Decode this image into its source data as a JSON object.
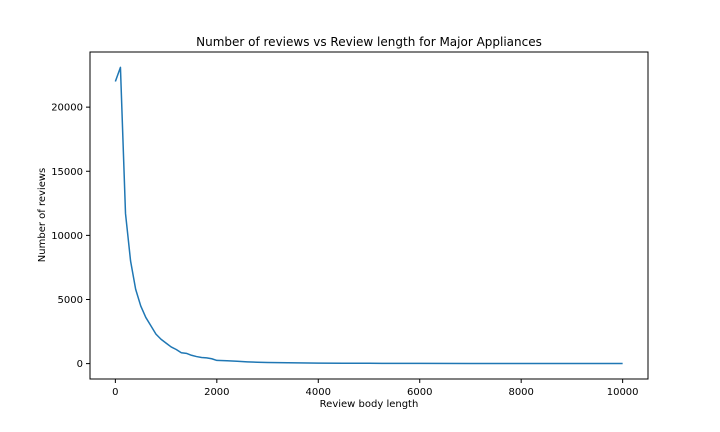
{
  "chart_data": {
    "type": "line",
    "title": "Number of reviews vs Review length for Major Appliances",
    "xlabel": "Review body length",
    "ylabel": "Number of reviews",
    "xlim": [
      -500,
      10500
    ],
    "ylim": [
      -1200,
      24300
    ],
    "xticks": [
      0,
      2000,
      4000,
      6000,
      8000,
      10000
    ],
    "xtick_labels": [
      "0",
      "2000",
      "4000",
      "6000",
      "8000",
      "10000"
    ],
    "yticks": [
      0,
      5000,
      10000,
      15000,
      20000
    ],
    "ytick_labels": [
      "0",
      "5000",
      "10000",
      "15000",
      "20000"
    ],
    "grid": false,
    "series": [
      {
        "color": "#1f77b4",
        "x": [
          0,
          100,
          200,
          300,
          400,
          500,
          600,
          700,
          800,
          900,
          1000,
          1100,
          1200,
          1300,
          1400,
          1500,
          1600,
          1700,
          1800,
          1900,
          2000,
          2200,
          2400,
          2600,
          2800,
          3000,
          3200,
          3400,
          3600,
          3800,
          4000,
          4500,
          5000,
          5500,
          6000,
          7000,
          8000,
          9000,
          10000
        ],
        "y": [
          22000,
          23100,
          11700,
          8000,
          5800,
          4500,
          3600,
          2950,
          2300,
          1900,
          1600,
          1300,
          1100,
          850,
          800,
          650,
          550,
          480,
          450,
          380,
          250,
          220,
          180,
          140,
          110,
          90,
          80,
          70,
          60,
          50,
          40,
          30,
          25,
          20,
          15,
          10,
          8,
          6,
          5
        ]
      }
    ]
  }
}
